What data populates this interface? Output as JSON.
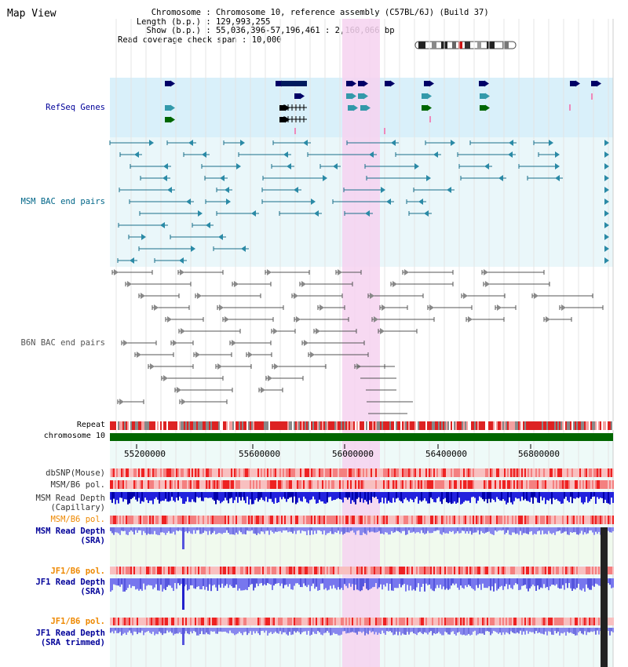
{
  "page": {
    "title": "Map View"
  },
  "header": {
    "chromosome_label": "Chromosome",
    "chromosome_value": "Chromosome 10, reference assembly (C57BL/6J) (Build 37)",
    "length_label": "Length (b.p.)",
    "length_value": "129,993,255",
    "show_label": "Show (b.p.)",
    "show_value": "55,036,396-57,196,461 : 2,160,066 bp",
    "coverage_label": "Read coverage check span",
    "coverage_value": "10,000"
  },
  "tracks": {
    "refseq": {
      "label": "RefSeq Genes",
      "color": "#000099"
    },
    "msm_bac": {
      "label": "MSM BAC end pairs",
      "color": "#006688"
    },
    "b6n_bac": {
      "label": "B6N BAC end pairs",
      "color": "#555555"
    },
    "repeat": {
      "label": "Repeat"
    },
    "chromosome": {
      "label": "chromosome 10"
    },
    "dbsnp": {
      "label": "dbSNP(Mouse)"
    },
    "msm_b6_pol_1": {
      "label": "MSM/B6 pol."
    },
    "msm_depth_cap": {
      "label1": "MSM Read Depth",
      "label2": "(Capillary)"
    },
    "msm_b6_pol_2": {
      "label": "MSM/B6 pol.",
      "color": "#ee8800"
    },
    "msm_depth_sra": {
      "label1": "MSM Read Depth",
      "label2": "(SRA)",
      "color": "#000099"
    },
    "jf1_b6_pol_1": {
      "label": "JF1/B6 pol.",
      "color": "#ee8800"
    },
    "jf1_depth_sra": {
      "label1": "JF1 Read Depth",
      "label2": "(SRA)",
      "color": "#000099"
    },
    "jf1_b6_pol_2": {
      "label": "JF1/B6 pol.",
      "color": "#ee8800"
    },
    "jf1_depth_trim": {
      "label1": "JF1 Read Depth",
      "label2": "(SRA trimmed)",
      "color": "#000099"
    }
  },
  "axis": {
    "ticks": [
      "55200000",
      "55600000",
      "56000000",
      "56400000",
      "56800000"
    ]
  },
  "colors": {
    "highlight": "#f6d2f0",
    "refseq_bg": "#d9f0fa",
    "msm_bg": "#eaf7fa",
    "bottom_bg": "#eefaf8",
    "chromosome_bar": "#006600",
    "repeat_red": "#dd2222",
    "depth_blue": "#2222dd",
    "depth_light": "#8888ee"
  }
}
